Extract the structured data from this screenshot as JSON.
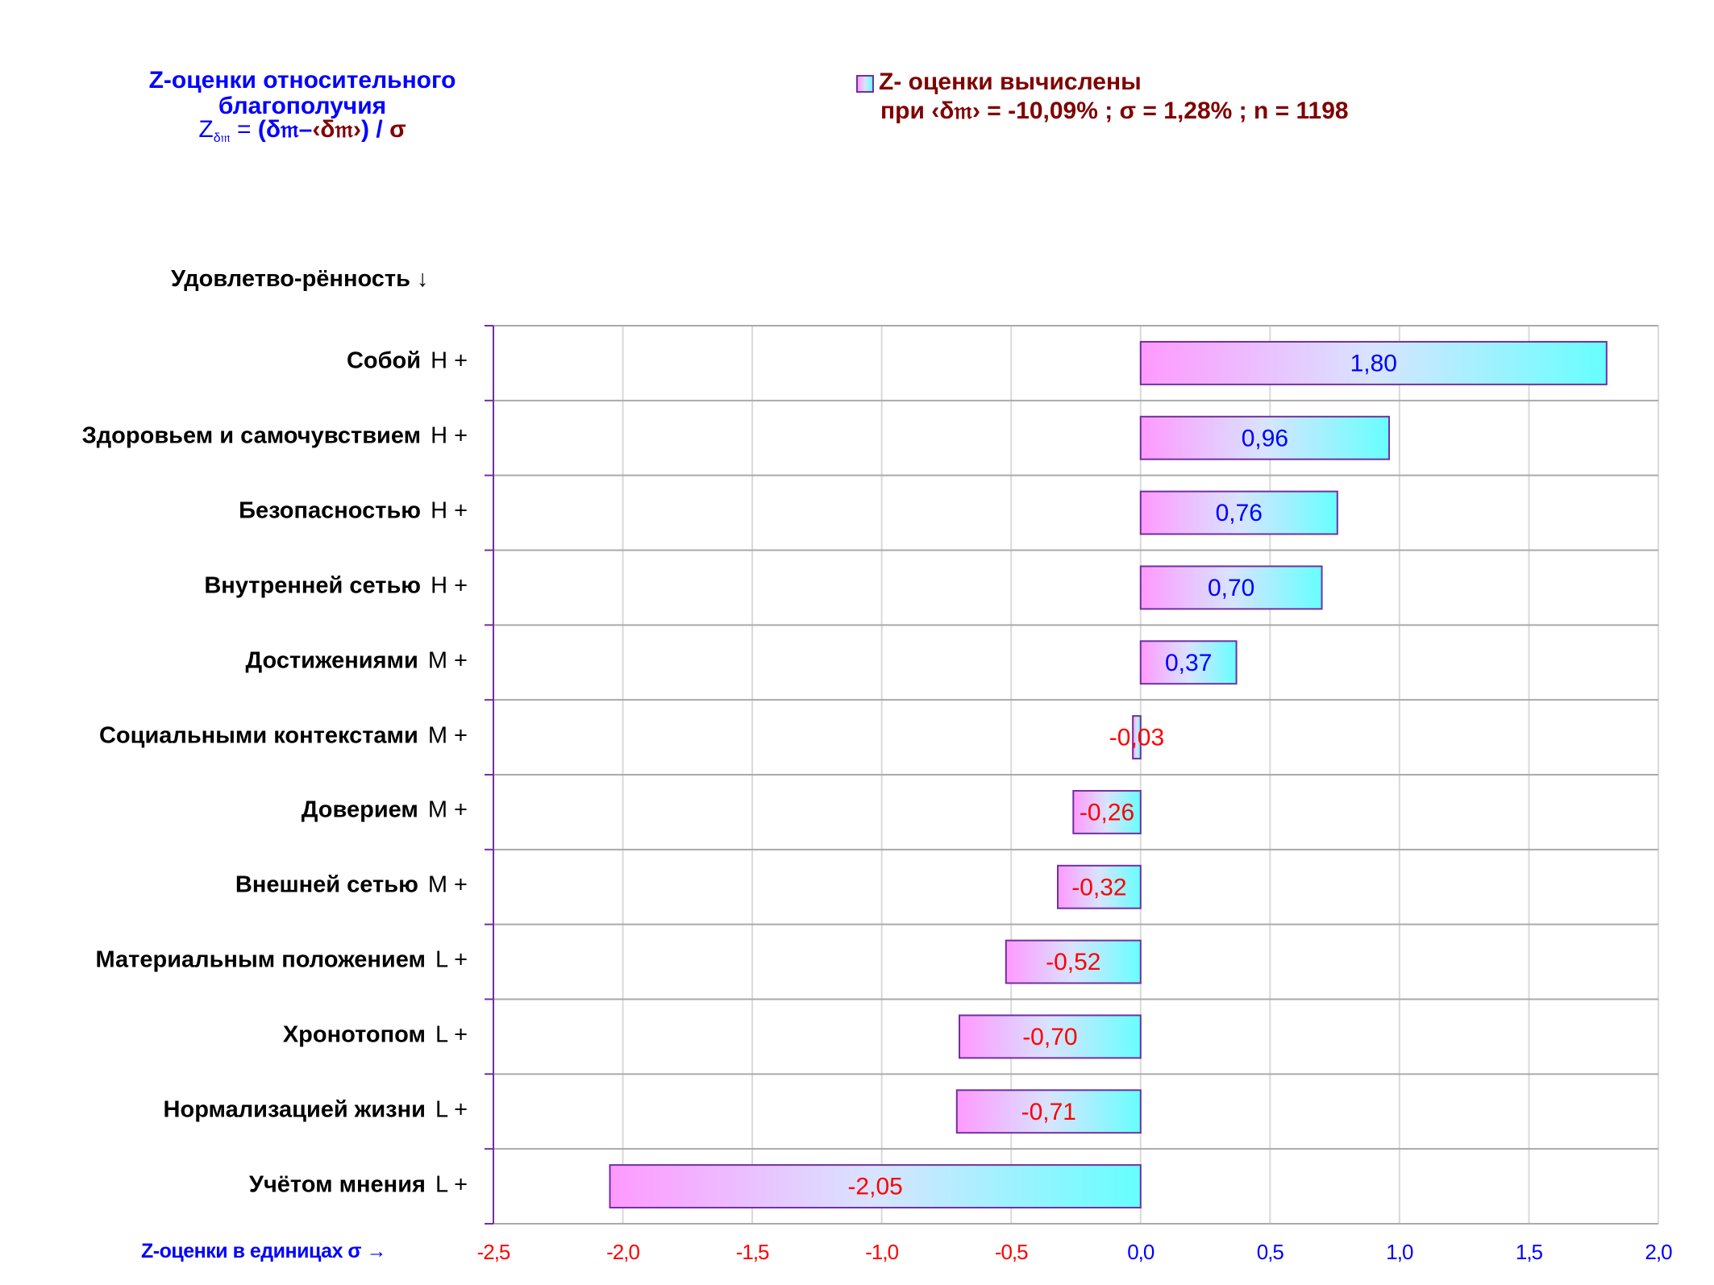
{
  "title": {
    "line1": "Z-оценки  относительного",
    "line2": "благополучия",
    "formula": {
      "z": "Z",
      "z_sub": "δ𝔪",
      "eq": " = ",
      "open": "(δ𝔪–",
      "mean": "‹δ𝔪›",
      "close": ")",
      "slash": " / ",
      "sigma": "σ"
    }
  },
  "legend": {
    "line1": "Z- оценки вычислены",
    "line2": "при ‹δ𝔪› = -10,09% ; σ = 1,28% ; n = 1198"
  },
  "y_axis_title": "Удовлетво-рённость ↓",
  "x_axis_caption": "Z-оценки в единицах σ →",
  "colors": {
    "bar_gradient_start": "#FF99FF",
    "bar_gradient_mid": "#D8E4FF",
    "bar_gradient_end": "#66FFFF",
    "bar_border": "#7030A0",
    "positive_text": "#0000FF",
    "negative_text": "#FF0000",
    "title_blue": "#0000FF",
    "legend_text": "#800000",
    "grid_major": "#AAAAAA",
    "grid_minor": "#D9D9D9",
    "axis": "#7030A0"
  },
  "chart_data": {
    "type": "bar",
    "orientation": "horizontal",
    "title": "Z-оценки относительного благополучия",
    "xlabel": "Z-оценки в единицах σ →",
    "ylabel": "Удовлетво-рённость ↓",
    "xlim": [
      -2.5,
      2.0
    ],
    "x_ticks": [
      -2.5,
      -2.0,
      -1.5,
      -1.0,
      -0.5,
      0.0,
      0.5,
      1.0,
      1.5,
      2.0
    ],
    "x_tick_labels": [
      "-2,5",
      "-2,0",
      "-1,5",
      "-1,0",
      "-0,5",
      "0,0",
      "0,5",
      "1,0",
      "1,5",
      "2,0"
    ],
    "grid": true,
    "legend_position": "top-right",
    "categories": [
      {
        "name": "Собой",
        "level": "H +"
      },
      {
        "name": "Здоровьем и самочувствием",
        "level": "H +"
      },
      {
        "name": "Безопасностью",
        "level": "H +"
      },
      {
        "name": "Внутренней сетью",
        "level": "H +"
      },
      {
        "name": "Достижениями",
        "level": "M +"
      },
      {
        "name": "Социальными контекстами",
        "level": "M +"
      },
      {
        "name": "Доверием",
        "level": "M +"
      },
      {
        "name": "Внешней сетью",
        "level": "M +"
      },
      {
        "name": "Материальным положением",
        "level": "L +"
      },
      {
        "name": "Хронотопом",
        "level": "L +"
      },
      {
        "name": "Нормализацией жизни",
        "level": "L +"
      },
      {
        "name": "Учётом мнения",
        "level": "L +"
      }
    ],
    "values": [
      1.8,
      0.96,
      0.76,
      0.7,
      0.37,
      -0.03,
      -0.26,
      -0.32,
      -0.52,
      -0.7,
      -0.71,
      -2.05
    ],
    "value_labels": [
      "1,80",
      "0,96",
      "0,76",
      "0,70",
      "0,37",
      "-0,03",
      "-0,26",
      "-0,32",
      "-0,52",
      "-0,70",
      "-0,71",
      "-2,05"
    ],
    "series": [
      {
        "name": "Z- оценки вычислены при ‹δ𝔪› = -10,09% ; σ = 1,28% ; n = 1198",
        "values": [
          1.8,
          0.96,
          0.76,
          0.7,
          0.37,
          -0.03,
          -0.26,
          -0.32,
          -0.52,
          -0.7,
          -0.71,
          -2.05
        ]
      }
    ]
  }
}
